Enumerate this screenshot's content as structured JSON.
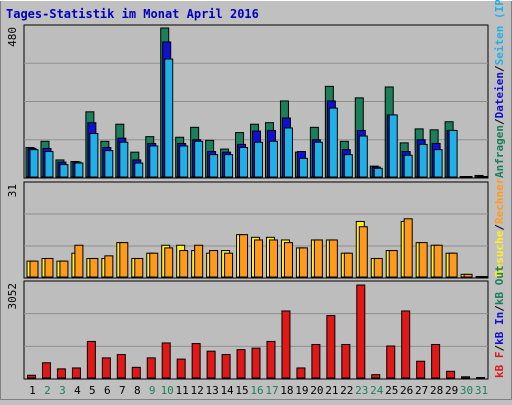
{
  "title": "Tages-Statistik im Monat April 2016",
  "colors": {
    "title": "#0000c0",
    "plot_bg": "#bdbdbd",
    "grid": "#909090",
    "hits": "#1a7f5a",
    "files": "#1010d0",
    "pages": "#20b0e8",
    "sites": "#ff9a1a",
    "visits": "#ffee22",
    "kb_in": "#1010d0",
    "kb_out": "#1a7f5a",
    "kb_f": "#e01818",
    "weekend_label": "#1a7f5a"
  },
  "chart_data": [
    {
      "type": "bar",
      "panel": "top",
      "ymax_label": "480",
      "ymax": 480,
      "legend": [
        "Anfragen",
        "/",
        "Dateien",
        "/",
        "Seiten",
        "(IP-Adressen)"
      ],
      "x": [
        "1",
        "2",
        "3",
        "4",
        "5",
        "6",
        "7",
        "8",
        "9",
        "10",
        "11",
        "12",
        "13",
        "14",
        "15",
        "16",
        "17",
        "18",
        "19",
        "20",
        "21",
        "22",
        "23",
        "24",
        "25",
        "26",
        "27",
        "28",
        "29",
        "30",
        "31"
      ],
      "series": [
        {
          "name": "Anfragen",
          "values": [
            95,
            115,
            55,
            50,
            210,
            115,
            170,
            80,
            130,
            480,
            128,
            160,
            118,
            90,
            143,
            170,
            175,
            245,
            80,
            160,
            292,
            115,
            255,
            35,
            290,
            110,
            155,
            152,
            178,
            0,
            5
          ]
        },
        {
          "name": "Dateien",
          "values": [
            92,
            92,
            48,
            48,
            175,
            95,
            125,
            55,
            108,
            435,
            108,
            120,
            82,
            80,
            105,
            148,
            150,
            190,
            82,
            120,
            245,
            88,
            150,
            32,
            200,
            82,
            120,
            108,
            150,
            0,
            0
          ]
        },
        {
          "name": "Seiten",
          "values": [
            88,
            82,
            40,
            45,
            140,
            85,
            112,
            45,
            100,
            380,
            100,
            115,
            72,
            72,
            95,
            112,
            115,
            158,
            60,
            112,
            222,
            72,
            132,
            28,
            200,
            70,
            105,
            88,
            150,
            0,
            0
          ]
        }
      ]
    },
    {
      "type": "bar",
      "panel": "middle",
      "ymax_label": "31",
      "ymax": 31,
      "legend": [
        "Besuche",
        "/",
        "Rechner"
      ],
      "x": [
        "1",
        "2",
        "3",
        "4",
        "5",
        "6",
        "7",
        "8",
        "9",
        "10",
        "11",
        "12",
        "13",
        "14",
        "15",
        "16",
        "17",
        "18",
        "19",
        "20",
        "21",
        "22",
        "23",
        "24",
        "25",
        "26",
        "27",
        "28",
        "29",
        "30",
        "31"
      ],
      "series": [
        {
          "name": "Besuche",
          "values": [
            6,
            7,
            6,
            9,
            7,
            7,
            13,
            7,
            9,
            12,
            12,
            10,
            9,
            10,
            16,
            15,
            15,
            14,
            11,
            14,
            14,
            9,
            21,
            7,
            10,
            21,
            13,
            12,
            9,
            1,
            0
          ]
        },
        {
          "name": "Rechner",
          "values": [
            6,
            7,
            6,
            12,
            7,
            8,
            13,
            7,
            9,
            11,
            10,
            12,
            10,
            9,
            16,
            14,
            14,
            13,
            11,
            14,
            14,
            9,
            19,
            7,
            10,
            22,
            13,
            12,
            9,
            1,
            0
          ]
        }
      ]
    },
    {
      "type": "bar",
      "panel": "bottom",
      "ymax_label": "3052",
      "ymax": 3052,
      "legend": [
        "kB F",
        "/",
        "kB In",
        "/",
        "kB Out"
      ],
      "x": [
        "1",
        "2",
        "3",
        "4",
        "5",
        "6",
        "7",
        "8",
        "9",
        "10",
        "11",
        "12",
        "13",
        "14",
        "15",
        "16",
        "17",
        "18",
        "19",
        "20",
        "21",
        "22",
        "23",
        "24",
        "25",
        "26",
        "27",
        "28",
        "29",
        "30",
        "31"
      ],
      "series": [
        {
          "name": "kB F",
          "values": [
            90,
            500,
            300,
            330,
            1200,
            660,
            770,
            350,
            660,
            1150,
            620,
            1130,
            880,
            770,
            930,
            980,
            1200,
            2200,
            330,
            1100,
            2050,
            1100,
            3052,
            110,
            1050,
            2200,
            550,
            1100,
            220,
            40,
            0
          ]
        }
      ]
    }
  ],
  "days": [
    "1",
    "2",
    "3",
    "4",
    "5",
    "6",
    "7",
    "8",
    "9",
    "10",
    "11",
    "12",
    "13",
    "14",
    "15",
    "16",
    "17",
    "18",
    "19",
    "20",
    "21",
    "22",
    "23",
    "24",
    "25",
    "26",
    "27",
    "28",
    "29",
    "30",
    "31"
  ],
  "weekend_days": [
    "2",
    "3",
    "9",
    "10",
    "16",
    "17",
    "23",
    "24",
    "30",
    "31"
  ]
}
